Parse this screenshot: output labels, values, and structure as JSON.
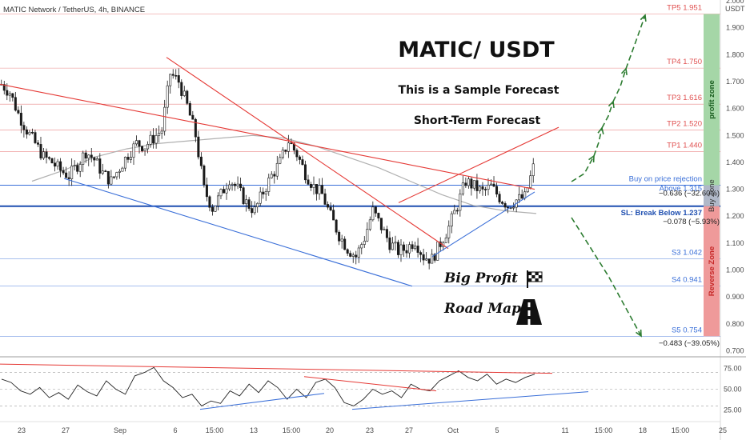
{
  "chart_data": [
    {
      "type": "candlestick",
      "title": "MATIC Network / TetherUS, 4h, BINANCE",
      "quote_unit": "USDT",
      "ylim": [
        0.7,
        2.0
      ],
      "y_ticks": [
        "2.000",
        "1.900",
        "1.800",
        "1.700",
        "1.600",
        "1.500",
        "1.400",
        "1.300",
        "1.200",
        "1.100",
        "1.000",
        "0.900",
        "0.800",
        "0.700"
      ],
      "x_ticks": [
        "23",
        "27",
        "Sep",
        "6",
        "15:00",
        "13",
        "15:00",
        "20",
        "23",
        "27",
        "Oct",
        "5",
        "11",
        "15:00",
        "18",
        "15:00",
        "25"
      ],
      "candles_close_path": [
        1.69,
        1.66,
        1.58,
        1.52,
        1.47,
        1.42,
        1.4,
        1.37,
        1.35,
        1.39,
        1.44,
        1.41,
        1.36,
        1.33,
        1.38,
        1.43,
        1.47,
        1.46,
        1.49,
        1.52,
        1.73,
        1.7,
        1.61,
        1.5,
        1.3,
        1.23,
        1.28,
        1.34,
        1.3,
        1.25,
        1.22,
        1.29,
        1.35,
        1.4,
        1.48,
        1.43,
        1.36,
        1.31,
        1.28,
        1.2,
        1.13,
        1.08,
        1.05,
        1.12,
        1.22,
        1.16,
        1.1,
        1.07,
        1.08,
        1.11,
        1.05,
        1.04,
        1.1,
        1.16,
        1.24,
        1.33,
        1.31,
        1.29,
        1.31,
        1.27,
        1.24,
        1.26,
        1.27,
        1.38
      ],
      "ma_line": [
        1.33,
        1.37,
        1.42,
        1.45,
        1.47,
        1.48,
        1.49,
        1.5,
        1.49,
        1.46,
        1.42,
        1.38,
        1.33,
        1.28,
        1.24,
        1.22,
        1.21
      ],
      "annotations": {
        "headline": "MATIC/ USDT",
        "subtitle": "This is a Sample Forecast",
        "forecast": "Short-Term Forecast",
        "big_profit": "Big Profit",
        "road_map": "Road Map",
        "profit_zone": "profit zone",
        "buy_zone": "Buy Zone",
        "reverse_zone": "Reverse Zone"
      },
      "levels": [
        {
          "name": "TP5",
          "label": "TP5 1.951",
          "value": 1.951,
          "color": "#e05252"
        },
        {
          "name": "TP4",
          "label": "TP4 1.750",
          "value": 1.75,
          "color": "#e05252"
        },
        {
          "name": "TP3",
          "label": "TP3 1.616",
          "value": 1.616,
          "color": "#e05252"
        },
        {
          "name": "TP2",
          "label": "TP2 1.520",
          "value": 1.52,
          "color": "#e05252"
        },
        {
          "name": "TP1",
          "label": "TP1 1.440",
          "value": 1.44,
          "color": "#e05252"
        },
        {
          "name": "S3",
          "label": "S3 1.042",
          "value": 1.042,
          "color": "#3a6fd8"
        },
        {
          "name": "S4",
          "label": "S4 0.941",
          "value": 0.941,
          "color": "#3a6fd8"
        },
        {
          "name": "S5",
          "label": "S5 0.754",
          "value": 0.754,
          "color": "#3a6fd8"
        }
      ],
      "buy_line": {
        "value": 1.315,
        "line1": "Buy on price rejection",
        "line2": "Above 1.315"
      },
      "stop_line": {
        "value": 1.237,
        "label": "SL: Break Below 1.237"
      },
      "measure_labels": [
        {
          "text": "−0.636 (−32.60%)",
          "value": 1.285
        },
        {
          "text": "−0.078 (−5.93%)",
          "value": 1.18
        },
        {
          "text": "−0.483 (−39.05%)",
          "value": 0.728
        }
      ]
    },
    {
      "type": "line",
      "title": "",
      "ylim": [
        18,
        82
      ],
      "y_ticks": [
        "75.00",
        "50.00",
        "25.00"
      ],
      "reference_lines": [
        70,
        50,
        30
      ],
      "values": [
        62,
        58,
        48,
        44,
        52,
        40,
        46,
        38,
        55,
        47,
        42,
        60,
        50,
        44,
        66,
        70,
        76,
        60,
        52,
        40,
        44,
        30,
        36,
        33,
        48,
        42,
        56,
        46,
        60,
        52,
        38,
        50,
        40,
        58,
        62,
        52,
        34,
        30,
        38,
        50,
        44,
        48,
        40,
        56,
        50,
        48,
        60,
        66,
        72,
        64,
        60,
        68,
        56,
        62,
        58,
        64,
        68
      ]
    }
  ],
  "colors": {
    "price_axis_bg": "#ffffff",
    "candle_up": "#1a1a1a",
    "candle_down": "#1a1a1a",
    "profit_zone": "#a5d6a7",
    "buy_zone": "#b0b8c8",
    "reverse_zone": "#ef9a9a",
    "ma": "#b0b0b0",
    "trend_red": "#e53935",
    "trend_blue": "#3a6fd8",
    "arrow_green": "#2e7d32"
  }
}
